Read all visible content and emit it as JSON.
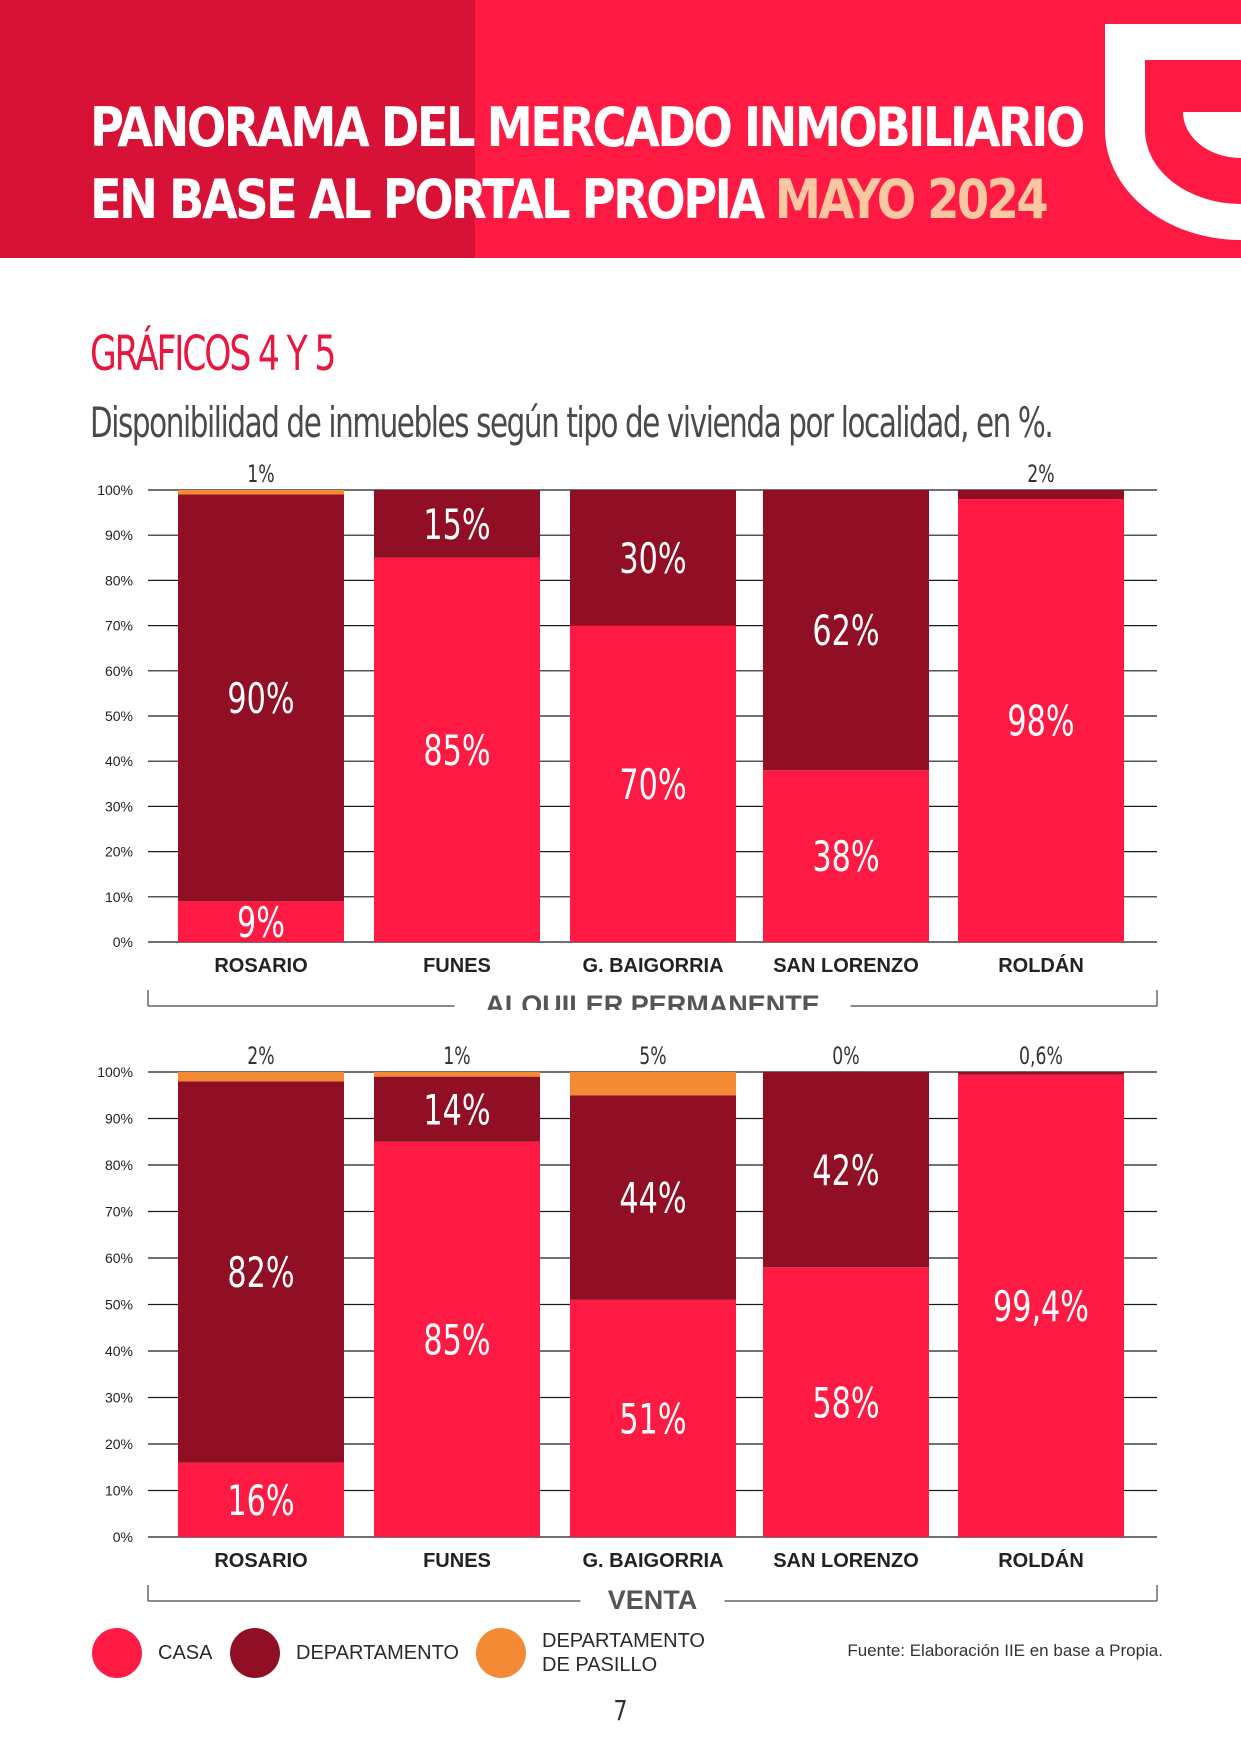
{
  "header": {
    "title_line1": "PANORAMA DEL MERCADO INMOBILIARIO",
    "title_line2": "EN BASE AL PORTAL PROPIA",
    "title_accent": "MAYO 2024",
    "brand_color": "#ff1a44",
    "accent_color": "#fbc7a1"
  },
  "section": {
    "title": "GRÁFICOS 4 Y 5",
    "subtitle": "Disponibilidad de inmuebles según tipo de vivienda por localidad, en %."
  },
  "colors": {
    "casa": "#ff1a44",
    "departamento": "#910f24",
    "pasillo": "#f58a35"
  },
  "chart_data": [
    {
      "type": "bar",
      "stacked": true,
      "title": "ALQUILER PERMANENTE",
      "categories": [
        "ROSARIO",
        "FUNES",
        "G. BAIGORRIA",
        "SAN LORENZO",
        "ROLDÁN"
      ],
      "yticks": [
        "0%",
        "10%",
        "20%",
        "30%",
        "40%",
        "50%",
        "60%",
        "70%",
        "80%",
        "90%",
        "100%"
      ],
      "ylim": [
        0,
        100
      ],
      "series": [
        {
          "name": "CASA",
          "values": [
            9,
            85,
            70,
            38,
            98
          ],
          "labels": [
            "9%",
            "85%",
            "70%",
            "38%",
            "98%"
          ]
        },
        {
          "name": "DEPARTAMENTO",
          "values": [
            90,
            15,
            30,
            62,
            2
          ],
          "labels": [
            "90%",
            "15%",
            "30%",
            "62%",
            "2%"
          ]
        },
        {
          "name": "DEPARTAMENTO DE PASILLO",
          "values": [
            1,
            0,
            0,
            0,
            0
          ],
          "labels": [
            "1%",
            "",
            "",
            "",
            ""
          ]
        }
      ],
      "top_labels": [
        "1%",
        "",
        "",
        "",
        "2%"
      ]
    },
    {
      "type": "bar",
      "stacked": true,
      "title": "VENTA",
      "categories": [
        "ROSARIO",
        "FUNES",
        "G. BAIGORRIA",
        "SAN LORENZO",
        "ROLDÁN"
      ],
      "yticks": [
        "0%",
        "10%",
        "20%",
        "30%",
        "40%",
        "50%",
        "60%",
        "70%",
        "80%",
        "90%",
        "100%"
      ],
      "ylim": [
        0,
        100
      ],
      "series": [
        {
          "name": "CASA",
          "values": [
            16,
            85,
            51,
            58,
            99.4
          ],
          "labels": [
            "16%",
            "85%",
            "51%",
            "58%",
            "99,4%"
          ]
        },
        {
          "name": "DEPARTAMENTO",
          "values": [
            82,
            14,
            44,
            42,
            0.6
          ],
          "labels": [
            "82%",
            "14%",
            "44%",
            "42%",
            "0,6%"
          ]
        },
        {
          "name": "DEPARTAMENTO DE PASILLO",
          "values": [
            2,
            1,
            5,
            0,
            0
          ],
          "labels": [
            "2%",
            "1%",
            "5%",
            "0%",
            ""
          ]
        }
      ],
      "top_labels": [
        "2%",
        "1%",
        "5%",
        "0%",
        "0,6%"
      ]
    }
  ],
  "legend": {
    "casa": "CASA",
    "departamento": "DEPARTAMENTO",
    "pasillo": "DEPARTAMENTO DE PASILLO"
  },
  "source": "Fuente: Elaboración IIE en base a Propia.",
  "page_number": "7"
}
